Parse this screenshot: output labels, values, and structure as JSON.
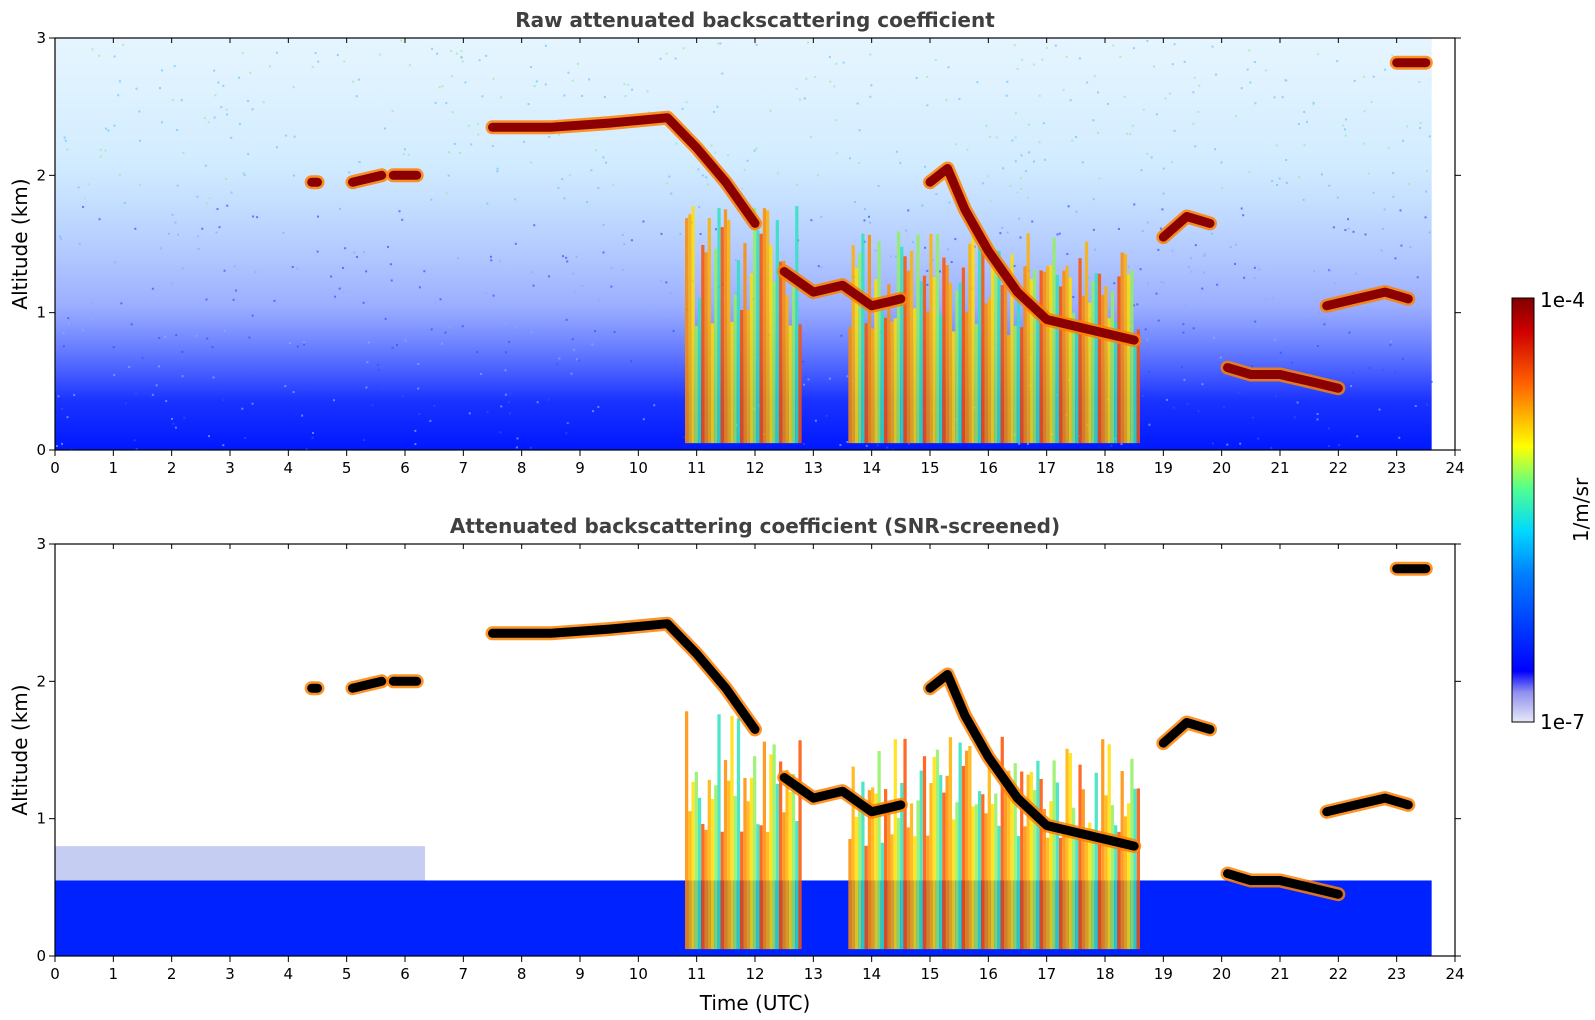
{
  "chart_data": [
    {
      "type": "heatmap",
      "title": "Raw attenuated backscattering coefficient",
      "xlabel": "",
      "ylabel": "Altitude (km)",
      "xlim": [
        0,
        24
      ],
      "ylim": [
        0,
        3
      ],
      "xticks": [
        "0",
        "1",
        "2",
        "3",
        "4",
        "5",
        "6",
        "7",
        "8",
        "9",
        "10",
        "11",
        "12",
        "13",
        "14",
        "15",
        "16",
        "17",
        "18",
        "19",
        "20",
        "21",
        "22",
        "23",
        "24"
      ],
      "yticks": [
        "0",
        "1",
        "2",
        "3"
      ],
      "data_extent_x": [
        0,
        23.6
      ],
      "background": "noise-speckle",
      "cloud_layers": [
        {
          "x": [
            7.5,
            8.5,
            9.5,
            10.5,
            11.0,
            11.5,
            12.0
          ],
          "y": [
            2.35,
            2.35,
            2.38,
            2.42,
            2.2,
            1.95,
            1.65
          ]
        },
        {
          "x": [
            12.5,
            13.0,
            13.5,
            14.0,
            14.5
          ],
          "y": [
            1.3,
            1.15,
            1.2,
            1.05,
            1.1
          ]
        },
        {
          "x": [
            15.0,
            15.3,
            15.6,
            16.0,
            16.5,
            17.0,
            17.5,
            18.0,
            18.5
          ],
          "y": [
            1.95,
            2.05,
            1.75,
            1.45,
            1.15,
            0.95,
            0.9,
            0.85,
            0.8
          ]
        },
        {
          "x": [
            19.0,
            19.4,
            19.8
          ],
          "y": [
            1.55,
            1.7,
            1.65
          ]
        },
        {
          "x": [
            20.1,
            20.5,
            21.0,
            21.5,
            22.0
          ],
          "y": [
            0.6,
            0.55,
            0.55,
            0.5,
            0.45
          ]
        },
        {
          "x": [
            21.8,
            22.3,
            22.8,
            23.2
          ],
          "y": [
            1.05,
            1.1,
            1.15,
            1.1
          ]
        },
        {
          "x": [
            23.0,
            23.5
          ],
          "y": [
            2.82,
            2.82
          ]
        },
        {
          "x": [
            4.4,
            4.5
          ],
          "y": [
            1.95,
            1.95
          ]
        },
        {
          "x": [
            5.1,
            5.6
          ],
          "y": [
            1.95,
            2.0
          ]
        },
        {
          "x": [
            5.8,
            6.2
          ],
          "y": [
            2.0,
            2.0
          ]
        }
      ],
      "precipitation_columns": [
        {
          "x": [
            10.8,
            12.8
          ],
          "top_km": 1.8
        },
        {
          "x": [
            13.6,
            18.6
          ],
          "top_km": 1.6
        }
      ]
    },
    {
      "type": "heatmap",
      "title": "Attenuated backscattering coefficient (SNR-screened)",
      "xlabel": "Time (UTC)",
      "ylabel": "Altitude (km)",
      "xlim": [
        0,
        24
      ],
      "ylim": [
        0,
        3
      ],
      "xticks": [
        "0",
        "1",
        "2",
        "3",
        "4",
        "5",
        "6",
        "7",
        "8",
        "9",
        "10",
        "11",
        "12",
        "13",
        "14",
        "15",
        "16",
        "17",
        "18",
        "19",
        "20",
        "21",
        "22",
        "23",
        "24"
      ],
      "yticks": [
        "0",
        "1",
        "2",
        "3"
      ],
      "data_extent_x": [
        0,
        23.6
      ],
      "background": "screened-white",
      "cloud_layers": [
        {
          "x": [
            7.5,
            8.5,
            9.5,
            10.5,
            11.0,
            11.5,
            12.0
          ],
          "y": [
            2.35,
            2.35,
            2.38,
            2.42,
            2.2,
            1.95,
            1.65
          ]
        },
        {
          "x": [
            12.5,
            13.0,
            13.5,
            14.0,
            14.5
          ],
          "y": [
            1.3,
            1.15,
            1.2,
            1.05,
            1.1
          ]
        },
        {
          "x": [
            15.0,
            15.3,
            15.6,
            16.0,
            16.5,
            17.0,
            17.5,
            18.0,
            18.5
          ],
          "y": [
            1.95,
            2.05,
            1.75,
            1.45,
            1.15,
            0.95,
            0.9,
            0.85,
            0.8
          ]
        },
        {
          "x": [
            19.0,
            19.4,
            19.8
          ],
          "y": [
            1.55,
            1.7,
            1.65
          ]
        },
        {
          "x": [
            20.1,
            20.5,
            21.0,
            21.5,
            22.0
          ],
          "y": [
            0.6,
            0.55,
            0.55,
            0.5,
            0.45
          ]
        },
        {
          "x": [
            21.8,
            22.3,
            22.8,
            23.2
          ],
          "y": [
            1.05,
            1.1,
            1.15,
            1.1
          ]
        },
        {
          "x": [
            23.0,
            23.5
          ],
          "y": [
            2.82,
            2.82
          ]
        },
        {
          "x": [
            4.4,
            4.5
          ],
          "y": [
            1.95,
            1.95
          ]
        },
        {
          "x": [
            5.1,
            5.6
          ],
          "y": [
            1.95,
            2.0
          ]
        },
        {
          "x": [
            5.8,
            6.2
          ],
          "y": [
            2.0,
            2.0
          ]
        }
      ],
      "precipitation_columns": [
        {
          "x": [
            10.8,
            12.8
          ],
          "top_km": 1.8
        },
        {
          "x": [
            13.6,
            18.6
          ],
          "top_km": 1.6
        }
      ]
    }
  ],
  "colorbar": {
    "label": "1/m/sr",
    "max_label": "1e-4",
    "min_label": "1e-7",
    "scale": "log",
    "range": [
      1e-07,
      0.0001
    ],
    "colormap": "jet",
    "colors": [
      "#e8e8f8",
      "#0000ff",
      "#00c8ff",
      "#50ff90",
      "#ffff00",
      "#ff6000",
      "#c00000",
      "#800000"
    ]
  },
  "colors": {
    "boundary_layer": "#0022ff",
    "cloud_core": "#8b0000",
    "cloud_core_screened": "#000000",
    "title_text": "#404040"
  }
}
